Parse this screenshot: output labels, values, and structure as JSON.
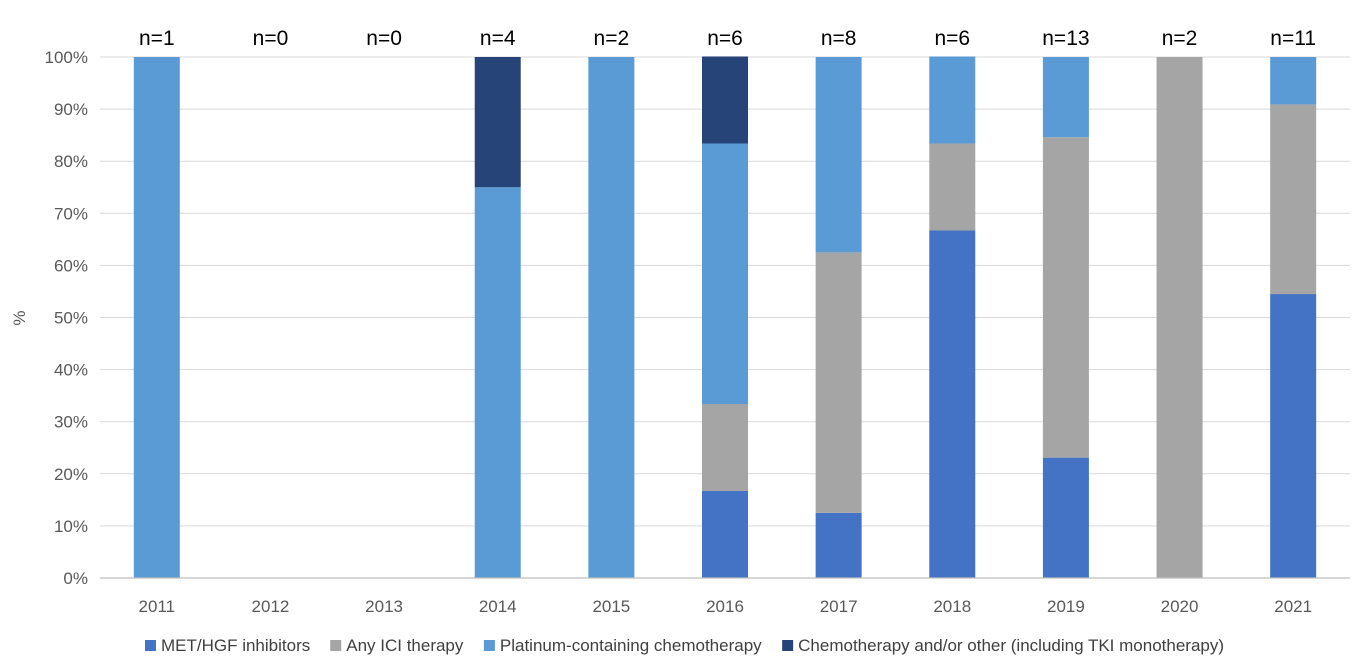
{
  "chart_data": {
    "type": "bar",
    "stacked": true,
    "title": "",
    "xlabel": "",
    "ylabel": "%",
    "ylim": [
      0,
      100
    ],
    "yticks": [
      "0%",
      "10%",
      "20%",
      "30%",
      "40%",
      "50%",
      "60%",
      "70%",
      "80%",
      "90%",
      "100%"
    ],
    "grid": true,
    "legend_position": "bottom",
    "categories": [
      "2011",
      "2012",
      "2013",
      "2014",
      "2015",
      "2016",
      "2017",
      "2018",
      "2019",
      "2020",
      "2021"
    ],
    "n_labels": [
      "n=1",
      "n=0",
      "n=0",
      "n=4",
      "n=2",
      "n=6",
      "n=8",
      "n=6",
      "n=13",
      "n=2",
      "n=11"
    ],
    "series": [
      {
        "name": "MET/HGF inhibitors",
        "color": "#4472c4",
        "values": [
          0,
          0,
          0,
          0,
          0,
          16.7,
          12.5,
          66.7,
          23.1,
          0,
          54.5
        ]
      },
      {
        "name": "Any ICI therapy",
        "color": "#a5a5a5",
        "values": [
          0,
          0,
          0,
          0,
          0,
          16.7,
          50.0,
          16.7,
          61.5,
          100,
          36.4
        ]
      },
      {
        "name": "Platinum-containing chemotherapy",
        "color": "#5b9bd5",
        "values": [
          100,
          0,
          0,
          75.0,
          100,
          50.0,
          37.5,
          16.7,
          15.4,
          0,
          9.1
        ]
      },
      {
        "name": "Chemotherapy and/or other (including TKI monotherapy)",
        "color": "#264478",
        "values": [
          0,
          0,
          0,
          25.0,
          0,
          16.7,
          0,
          0,
          0,
          0,
          0
        ]
      }
    ]
  }
}
